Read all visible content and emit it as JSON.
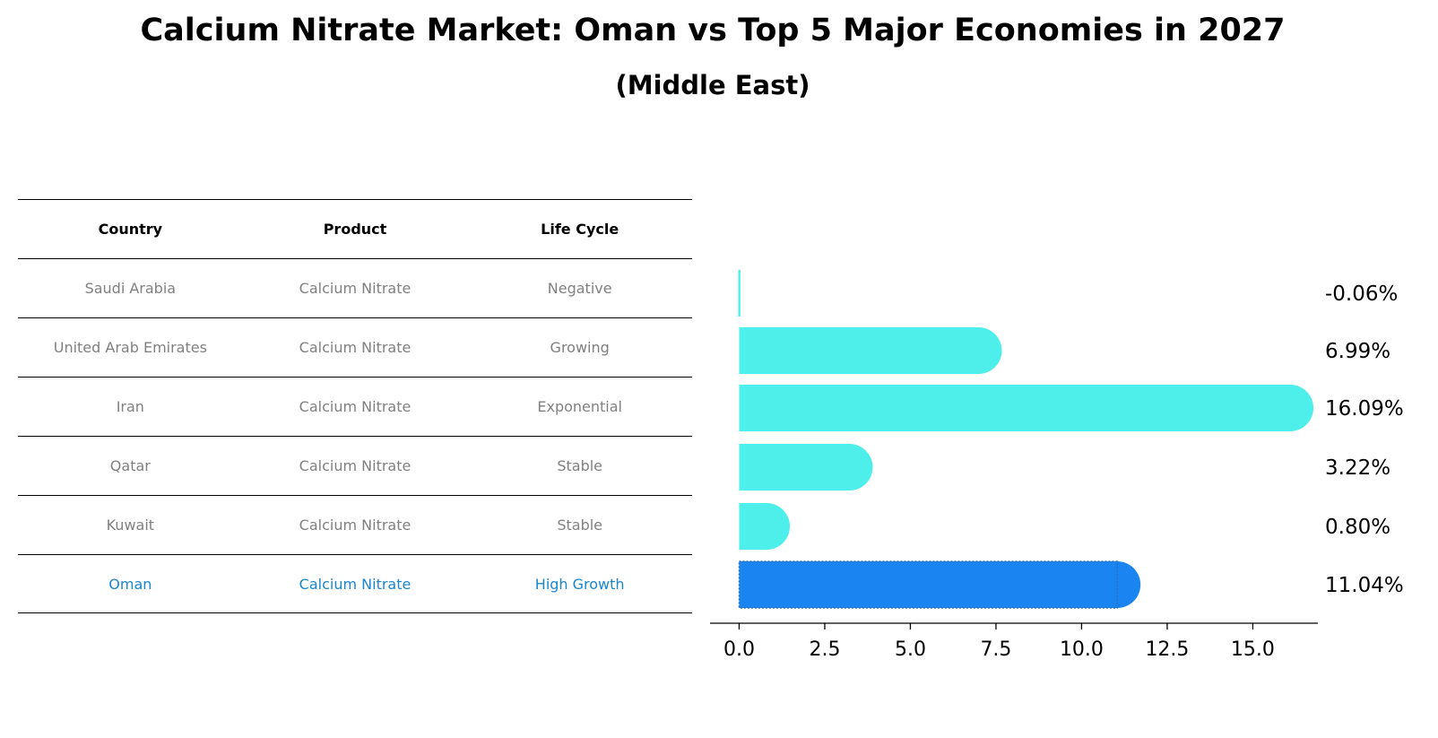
{
  "title": "Calcium Nitrate Market: Oman vs Top 5 Major Economies in 2027",
  "subtitle": "(Middle East)",
  "table": {
    "headers": [
      "Country",
      "Product",
      "Life Cycle"
    ],
    "rows": [
      [
        "Saudi Arabia",
        "Calcium Nitrate",
        "Negative"
      ],
      [
        "United Arab Emirates",
        "Calcium Nitrate",
        "Growing"
      ],
      [
        "Iran",
        "Calcium Nitrate",
        "Exponential"
      ],
      [
        "Qatar",
        "Calcium Nitrate",
        "Stable"
      ],
      [
        "Kuwait",
        "Calcium Nitrate",
        "Stable"
      ],
      [
        "Oman",
        "Calcium Nitrate",
        "High Growth"
      ]
    ],
    "highlight_row": 5
  },
  "colors": {
    "bar": "#4eeeea",
    "highlight_bar": "#1a85f0",
    "highlight_text": "#1a86cf"
  },
  "chart_data": {
    "type": "bar",
    "orientation": "horizontal",
    "categories": [
      "Saudi Arabia",
      "United Arab Emirates",
      "Iran",
      "Qatar",
      "Kuwait",
      "Oman"
    ],
    "values": [
      -0.06,
      6.99,
      16.09,
      3.22,
      0.8,
      11.04
    ],
    "value_labels": [
      "-0.06%",
      "6.99%",
      "16.09%",
      "3.22%",
      "0.80%",
      "11.04%"
    ],
    "highlight": "Oman",
    "xlim": [
      -0.85,
      16.9
    ],
    "xticks": [
      0.0,
      2.5,
      5.0,
      7.5,
      10.0,
      12.5,
      15.0
    ],
    "xtick_labels": [
      "0.0",
      "2.5",
      "5.0",
      "7.5",
      "10.0",
      "12.5",
      "15.0"
    ],
    "xlabel": "",
    "ylabel": ""
  }
}
